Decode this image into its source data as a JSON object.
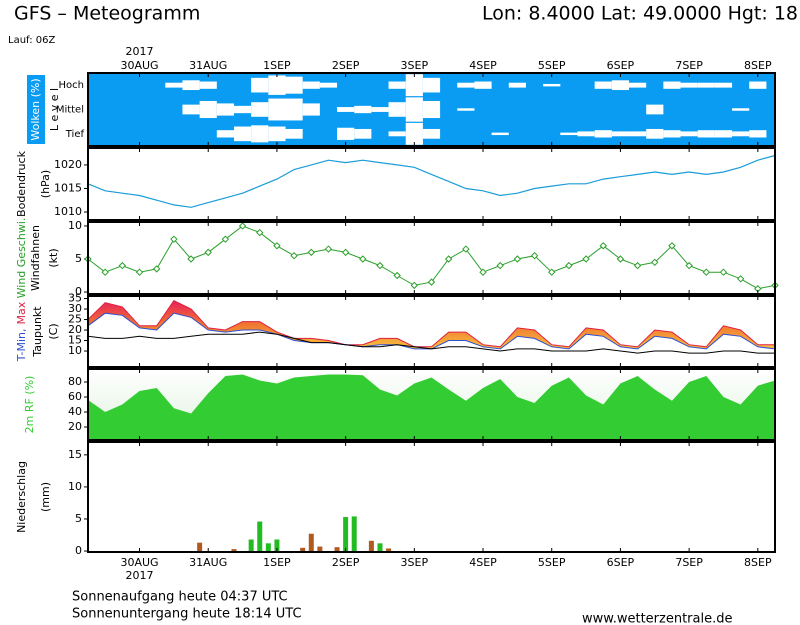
{
  "header": {
    "title": "GFS – Meteogramm",
    "location": "Lon: 8.4000 Lat: 49.0000 Hgt: 18",
    "run": "Lauf: 06Z",
    "year": "2017"
  },
  "footer": {
    "sunrise": "Sonnenaufgang heute 04:37 UTC",
    "sunset": "Sonnenuntergang heute 18:14 UTC",
    "source": "www.wetterzentrale.de"
  },
  "chart_data": [
    {
      "type": "heatmap",
      "ylabel": "Wolken (%)",
      "ylabel2": "L e v e l",
      "color": "#0a9cf2",
      "cloud_color": "#ffffff",
      "ylim": [
        0,
        100
      ],
      "categories": [
        null,
        null,
        null,
        "30AUG",
        null,
        null,
        null,
        "31AUG",
        null,
        null,
        null,
        "1SEP",
        null,
        null,
        null,
        "2SEP",
        null,
        null,
        null,
        "3SEP",
        null,
        null,
        null,
        "4SEP",
        null,
        null,
        null,
        "5SEP",
        null,
        null,
        null,
        "6SEP",
        null,
        null,
        null,
        "7SEP",
        null,
        null,
        null,
        "8SEP",
        null
      ],
      "series": [
        {
          "name": "Hoch",
          "values": [
            0,
            0,
            0,
            0,
            0,
            20,
            40,
            30,
            0,
            0,
            60,
            80,
            70,
            30,
            20,
            0,
            0,
            0,
            30,
            90,
            60,
            0,
            20,
            30,
            0,
            20,
            0,
            10,
            0,
            0,
            30,
            40,
            20,
            0,
            30,
            20,
            20,
            20,
            0,
            30,
            0
          ]
        },
        {
          "name": "Mittel",
          "values": [
            0,
            0,
            0,
            0,
            0,
            0,
            40,
            70,
            50,
            30,
            60,
            90,
            90,
            50,
            0,
            20,
            30,
            20,
            60,
            100,
            70,
            0,
            10,
            0,
            0,
            0,
            0,
            0,
            0,
            0,
            0,
            0,
            0,
            40,
            0,
            0,
            0,
            0,
            10,
            0,
            0
          ]
        },
        {
          "name": "Tief",
          "values": [
            0,
            0,
            0,
            0,
            0,
            0,
            0,
            0,
            30,
            60,
            70,
            60,
            40,
            0,
            0,
            50,
            40,
            0,
            20,
            90,
            40,
            0,
            0,
            0,
            10,
            0,
            0,
            0,
            10,
            20,
            30,
            20,
            20,
            40,
            30,
            20,
            30,
            30,
            20,
            30,
            0
          ]
        }
      ]
    },
    {
      "type": "line",
      "ylabel": "Bodendruck",
      "ylabel2": "(hPa)",
      "color": "#1a9cd8",
      "ylim": [
        1008.3,
        1023.6
      ],
      "yticks": [
        1010,
        1015,
        1020
      ],
      "values": [
        1016,
        1014.5,
        1014,
        1013.5,
        1012.5,
        1011.5,
        1011,
        1012,
        1013,
        1014,
        1015.5,
        1017,
        1019,
        1020,
        1021,
        1020.5,
        1021,
        1020.5,
        1020,
        1019.5,
        1018,
        1016.5,
        1015,
        1014.5,
        1013.5,
        1014,
        1015,
        1015.5,
        1016,
        1016,
        1017,
        1017.5,
        1018,
        1018.5,
        1018,
        1018.5,
        1018,
        1018.5,
        1019.5,
        1021,
        1022
      ]
    },
    {
      "type": "line-markers",
      "ylabel2": "Windfahnen",
      "ylabel3": "(kt)",
      "ylim": [
        -0.3,
        10.6
      ],
      "yticks": [
        0,
        5,
        10
      ],
      "series": [
        {
          "name": "Wind Geschwi.",
          "color": "#2aa02a",
          "values": [
            5,
            3,
            4,
            3,
            3.5,
            8,
            5,
            6,
            8,
            10,
            9,
            7,
            5.5,
            6,
            6.5,
            6,
            5,
            4,
            2.5,
            1,
            1.5,
            5,
            6.5,
            3,
            4,
            5,
            5.5,
            3,
            4,
            5,
            7,
            5,
            4,
            4.5,
            7,
            4,
            3,
            3,
            2,
            0.5,
            1
          ]
        }
      ]
    },
    {
      "type": "band",
      "ylabel3": "(C)",
      "ylim": [
        2.4,
        36.2
      ],
      "yticks": [
        10,
        15,
        20,
        25,
        30,
        35
      ],
      "band_colors": [
        "#e8205a",
        "#f07830",
        "#f8c040"
      ],
      "series": [
        {
          "name": "T-Min,",
          "color": "#3050d0",
          "values": [
            22,
            28,
            27,
            21,
            20,
            28,
            26,
            20,
            19,
            20,
            20,
            18,
            15,
            14,
            14,
            13,
            12,
            13,
            13,
            11,
            11,
            15,
            15,
            12,
            11,
            17,
            16,
            12,
            11,
            18,
            17,
            12,
            11,
            17,
            16,
            12,
            11,
            18,
            17,
            12,
            11
          ]
        },
        {
          "name": "Max",
          "color": "#e02040",
          "values": [
            25,
            33,
            31,
            22,
            22,
            34,
            30,
            21,
            20,
            24,
            24,
            19,
            16,
            16,
            15,
            13,
            13,
            16,
            16,
            12,
            12,
            19,
            19,
            13,
            12,
            21,
            20,
            13,
            12,
            21,
            20,
            13,
            12,
            20,
            19,
            13,
            12,
            22,
            20,
            13,
            13
          ]
        },
        {
          "name": "Taupunkt",
          "color": "#000000",
          "values": [
            17,
            16,
            16,
            17,
            16,
            16,
            17,
            18,
            18,
            18,
            19,
            18,
            16,
            14,
            14,
            13,
            12,
            12,
            13,
            12,
            11,
            12,
            12,
            11,
            10,
            11,
            11,
            10,
            10,
            10,
            11,
            10,
            9,
            10,
            10,
            9,
            9,
            10,
            10,
            9,
            9
          ]
        }
      ]
    },
    {
      "type": "area",
      "ylabel": "2m RF (%)",
      "color": "#33cc33",
      "ylim": [
        2.7,
        97.3
      ],
      "yticks": [
        20,
        40,
        60,
        80
      ],
      "values": [
        56,
        40,
        50,
        68,
        72,
        45,
        38,
        65,
        88,
        90,
        82,
        78,
        86,
        88,
        90,
        90,
        89,
        70,
        62,
        78,
        86,
        70,
        55,
        72,
        84,
        60,
        52,
        75,
        86,
        62,
        50,
        78,
        88,
        70,
        55,
        80,
        88,
        60,
        50,
        75,
        82
      ]
    },
    {
      "type": "bar",
      "ylabel": "Niederschlag",
      "ylabel2": "(mm)",
      "ylim": [
        -0.15,
        17
      ],
      "yticks": [
        0,
        5,
        10,
        15
      ],
      "categories": [
        null,
        null,
        null,
        null,
        null,
        null,
        "30AUG",
        null,
        null,
        null,
        null,
        null,
        null,
        null,
        "31AUG",
        null,
        null,
        null,
        null,
        null,
        null,
        null,
        "1SEP",
        null,
        null,
        null,
        null,
        null,
        null,
        null,
        "2SEP",
        null,
        null,
        null,
        null,
        null,
        null,
        null,
        "3SEP",
        null,
        null,
        null,
        null,
        null,
        null,
        null,
        "4SEP",
        null,
        null,
        null,
        null,
        null,
        null,
        null,
        "5SEP",
        null,
        null,
        null,
        null,
        null,
        null,
        null,
        "6SEP",
        null,
        null,
        null,
        null,
        null,
        null,
        null,
        "7SEP",
        null,
        null,
        null,
        null,
        null,
        null,
        null,
        "8SEP",
        null,
        null
      ],
      "series": [
        {
          "color": "#22bb22",
          "values": [
            0,
            0,
            0,
            0,
            0,
            0,
            0,
            0,
            0,
            0,
            0,
            0,
            0,
            0,
            0,
            0,
            0,
            0,
            0,
            1.8,
            4.6,
            1.2,
            1.8,
            0,
            0,
            0,
            0,
            0,
            0,
            0,
            5.3,
            5.4,
            0,
            0,
            1.2,
            0,
            0,
            0,
            0,
            0,
            0,
            0,
            0,
            0,
            0,
            0,
            0,
            0,
            0,
            0,
            0,
            0,
            0,
            0,
            0,
            0,
            0,
            0,
            0,
            0,
            0,
            0,
            0,
            0,
            0,
            0,
            0,
            0,
            0,
            0,
            0,
            0,
            0,
            0,
            0,
            0,
            0,
            0,
            0,
            0,
            0
          ]
        },
        {
          "color": "#b05a20",
          "values": [
            0,
            0,
            0,
            0,
            0,
            0,
            0,
            0,
            0,
            0,
            0,
            0,
            0,
            1.3,
            0,
            0,
            0,
            0.3,
            0,
            0,
            0,
            0,
            0,
            0,
            0,
            0.5,
            2.7,
            0.7,
            0,
            0.6,
            0,
            0,
            0,
            1.6,
            0,
            0.4,
            0,
            0,
            0,
            0,
            0,
            0,
            0,
            0,
            0,
            0,
            0,
            0,
            0,
            0,
            0,
            0,
            0,
            0,
            0,
            0,
            0,
            0,
            0,
            0,
            0,
            0,
            0,
            0,
            0,
            0,
            0,
            0,
            0,
            0,
            0,
            0,
            0,
            0,
            0,
            0,
            0,
            0,
            0,
            0,
            0
          ]
        }
      ]
    }
  ]
}
